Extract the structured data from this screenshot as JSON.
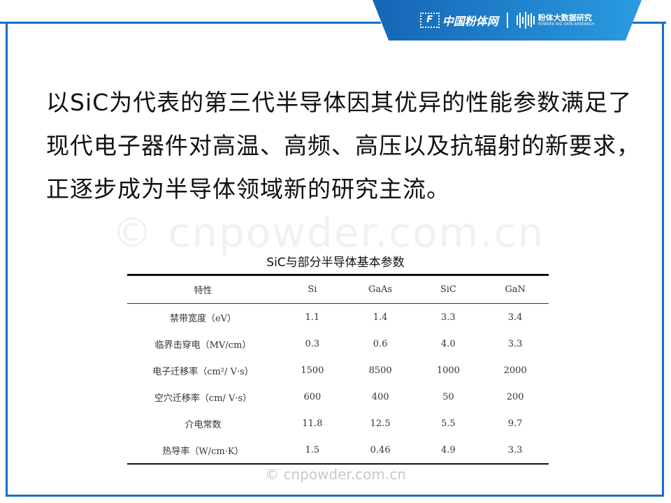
{
  "header": {
    "logo_main": "中国粉体网",
    "logo_secondary": "粉体大数据研究",
    "logo_secondary_sub": "POWDER BIG DATA RESEARCH",
    "brand_color": "#1a6fc0"
  },
  "paragraph": "以SiC为代表的第三代半导体因其优异的性能参数满足了现代电子器件对高温、高频、高压以及抗辐射的新要求，正逐步成为半导体领域新的研究主流。",
  "watermark": "© cnpowder.com.cn",
  "table": {
    "caption": "SiC与部分半导体基本参数",
    "headers": [
      "特性",
      "Si",
      "GaAs",
      "SiC",
      "GaN"
    ],
    "rows": [
      [
        "禁带宽度（eV）",
        "1.1",
        "1.4",
        "3.3",
        "3.4"
      ],
      [
        "临界击穿电（MV/cm）",
        "0.3",
        "0.6",
        "4.0",
        "3.3"
      ],
      [
        "电子迁移率（cm²/ V·s）",
        "1500",
        "8500",
        "1000",
        "2000"
      ],
      [
        "空穴迁移率（cm/ V·s）",
        "600",
        "400",
        "50",
        "200"
      ],
      [
        "介电常数",
        "11.8",
        "12.5",
        "5.5",
        "9.7"
      ],
      [
        "热导率（W/cm·K）",
        "1.5",
        "0.46",
        "4.9",
        "3.3"
      ]
    ]
  },
  "footer_watermark": "© cnpowder.com.cn"
}
